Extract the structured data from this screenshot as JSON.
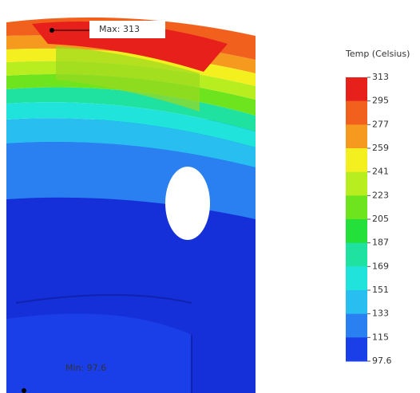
{
  "legend": {
    "title": "Temp (Celsius)",
    "ticks": [
      313,
      295,
      277,
      259,
      241,
      223,
      205,
      187,
      169,
      151,
      133,
      115,
      97.6
    ],
    "colors": [
      "#e8201c",
      "#f2601e",
      "#f59a1f",
      "#f4f020",
      "#b8ee20",
      "#6ee41e",
      "#24e03a",
      "#20e2a0",
      "#20e4dc",
      "#28bef0",
      "#2a80f0",
      "#1a3ee8"
    ]
  },
  "annotations": {
    "max": "Max: 313",
    "min": "Min: 97.6"
  }
}
